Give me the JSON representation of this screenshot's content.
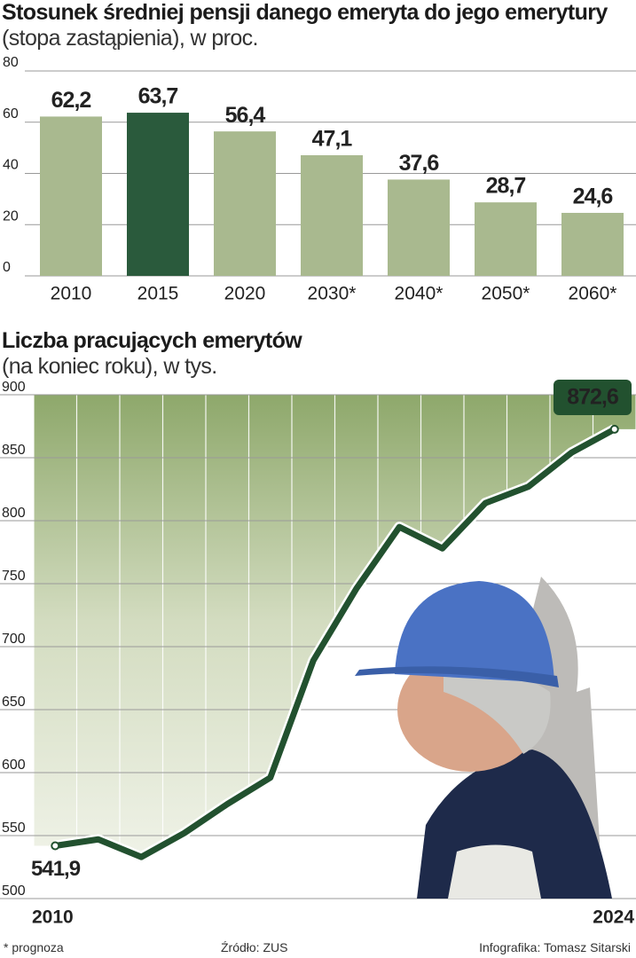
{
  "chart_data": [
    {
      "type": "bar",
      "title": "Stosunek średniej pensji danego emeryta do jego emerytury",
      "subtitle": "(stopa zastąpienia), w proc.",
      "categories": [
        "2010",
        "2015",
        "2020",
        "2030*",
        "2040*",
        "2050*",
        "2060*"
      ],
      "values": [
        62.2,
        63.7,
        56.4,
        47.1,
        37.6,
        28.7,
        24.6
      ],
      "value_labels": [
        "62,2",
        "63,7",
        "56,4",
        "47,1",
        "37,6",
        "28,7",
        "24,6"
      ],
      "colors": [
        "#a9b98f",
        "#2a5a3c",
        "#a9b98f",
        "#a9b98f",
        "#a9b98f",
        "#a9b98f",
        "#a9b98f"
      ],
      "ylim": [
        0,
        80
      ],
      "yticks": [
        0,
        20,
        40,
        60,
        80
      ],
      "grid": true
    },
    {
      "type": "line",
      "title": "Liczba pracujących emerytów",
      "subtitle": "(na koniec roku), w tys.",
      "categories": [
        "2010",
        null,
        null,
        null,
        null,
        null,
        null,
        null,
        null,
        null,
        null,
        null,
        null,
        "2024"
      ],
      "values": [
        541.9,
        547,
        533,
        552,
        575,
        596,
        689,
        746,
        795,
        778,
        814,
        827,
        854,
        872.6
      ],
      "value_labels": [
        "541,9",
        null,
        null,
        null,
        null,
        null,
        null,
        null,
        null,
        null,
        null,
        null,
        null,
        "872,6"
      ],
      "color": "#22512f",
      "ylim": [
        500,
        900
      ],
      "yticks": [
        500,
        550,
        600,
        650,
        700,
        750,
        800,
        850,
        900
      ],
      "grid": true
    }
  ],
  "footer": {
    "note": "* prognoza",
    "source": "Źródło: ZUS",
    "credit": "Infografika: Tomasz Sitarski"
  }
}
